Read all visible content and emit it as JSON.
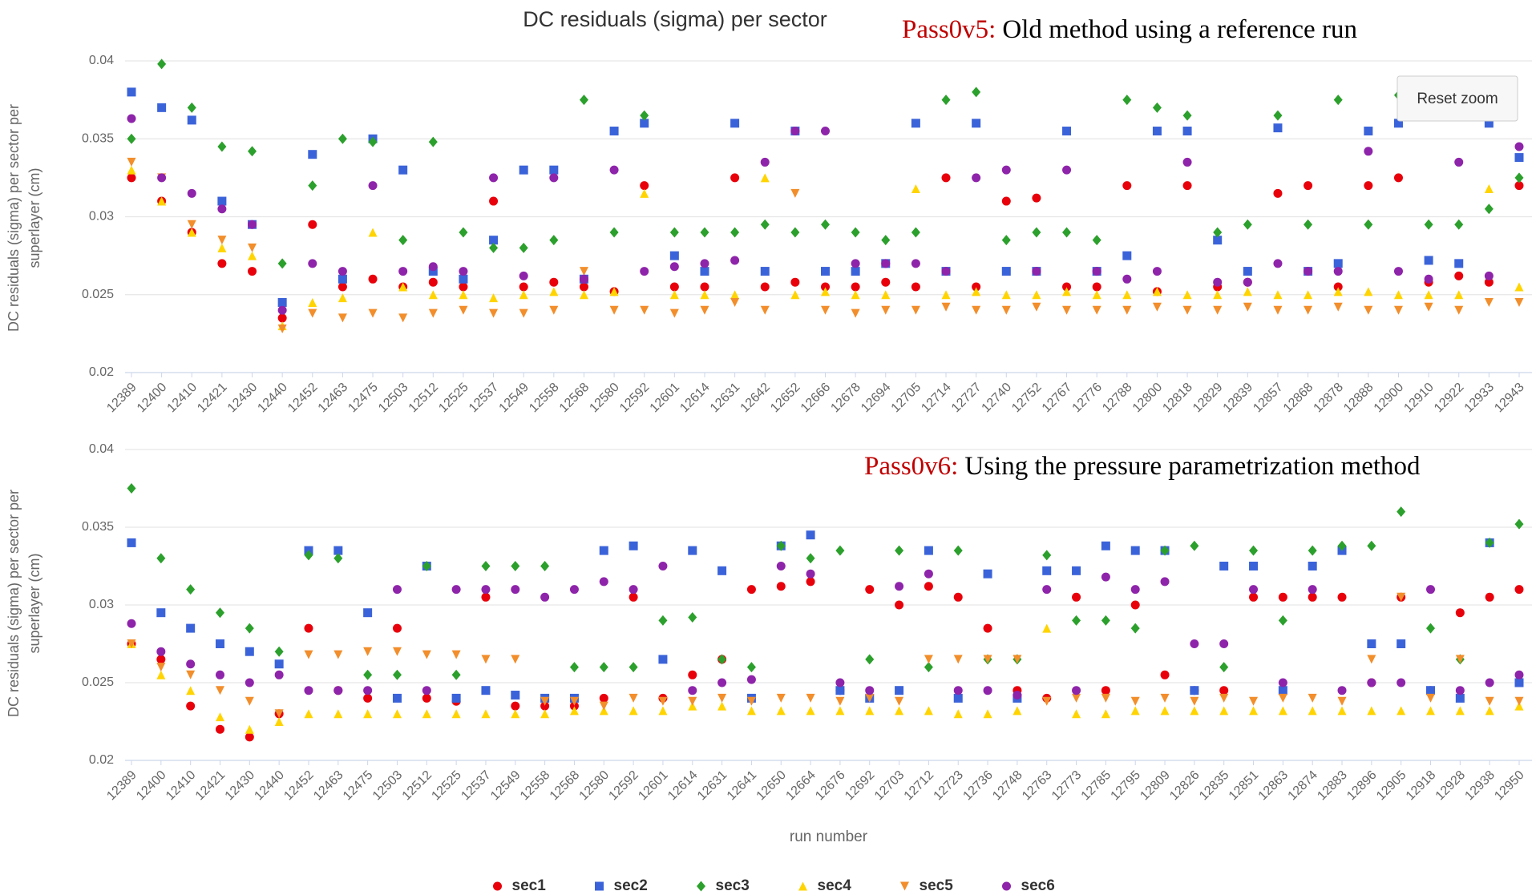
{
  "chart_data": [
    {
      "type": "scatter",
      "title": "DC residuals (sigma) per sector",
      "annotation": {
        "label": "Pass0v5:",
        "text": "Old method using a reference run"
      },
      "button": "Reset zoom",
      "y_label": "DC residuals (sigma) per sector per superlayer (cm)",
      "categories": [
        "12389",
        "12400",
        "12410",
        "12421",
        "12430",
        "12440",
        "12452",
        "12463",
        "12475",
        "12503",
        "12512",
        "12525",
        "12537",
        "12549",
        "12558",
        "12568",
        "12580",
        "12592",
        "12601",
        "12614",
        "12631",
        "12642",
        "12652",
        "12666",
        "12678",
        "12694",
        "12705",
        "12714",
        "12727",
        "12740",
        "12752",
        "12767",
        "12776",
        "12788",
        "12800",
        "12818",
        "12829",
        "12839",
        "12857",
        "12868",
        "12878",
        "12888",
        "12900",
        "12910",
        "12922",
        "12933",
        "12943"
      ],
      "ylim": [
        0.02,
        0.04
      ],
      "yticks": [
        0.02,
        0.025,
        0.03,
        0.035,
        0.04
      ],
      "grid": true,
      "series": [
        {
          "color": "#e8000b",
          "marker": "circle",
          "values": [
            0.0325,
            0.031,
            0.029,
            0.027,
            0.0265,
            0.0235,
            0.0295,
            0.0255,
            0.026,
            0.0255,
            0.0258,
            0.0255,
            0.031,
            0.0255,
            0.0258,
            0.0255,
            0.0252,
            0.032,
            0.0255,
            0.0255,
            0.0325,
            0.0255,
            0.0258,
            0.0255,
            0.0255,
            0.0258,
            0.0255,
            0.0325,
            0.0255,
            0.031,
            0.0312,
            0.0255,
            0.0255,
            0.032,
            0.0252,
            0.032,
            0.0255,
            0.0258,
            0.0315,
            0.032,
            0.0255,
            0.032,
            0.0325,
            0.0258,
            0.0262,
            0.0258,
            0.032
          ]
        },
        {
          "color": "#3b63d9",
          "marker": "square",
          "values": [
            0.038,
            0.037,
            0.0362,
            0.031,
            0.0295,
            0.0245,
            0.034,
            0.026,
            0.035,
            0.033,
            0.0265,
            0.026,
            0.0285,
            0.033,
            0.033,
            0.026,
            0.0355,
            0.036,
            0.0275,
            0.0265,
            0.036,
            0.0265,
            0.0355,
            0.0265,
            0.0265,
            0.027,
            0.036,
            0.0265,
            0.036,
            0.0265,
            0.0265,
            0.0355,
            0.0265,
            0.0275,
            0.0355,
            0.0355,
            0.0285,
            0.0265,
            0.0357,
            0.0265,
            0.027,
            0.0355,
            0.036,
            0.0272,
            0.027,
            0.036,
            0.0338
          ]
        },
        {
          "color": "#2ca02c",
          "marker": "diamond",
          "values": [
            0.035,
            0.0398,
            0.037,
            0.0345,
            0.0342,
            0.027,
            0.032,
            0.035,
            0.0348,
            0.0285,
            0.0348,
            0.029,
            0.028,
            0.028,
            0.0285,
            0.0375,
            0.029,
            0.0365,
            0.029,
            0.029,
            0.029,
            0.0295,
            0.029,
            0.0295,
            0.029,
            0.0285,
            0.029,
            0.0375,
            0.038,
            0.0285,
            0.029,
            0.029,
            0.0285,
            0.0375,
            0.037,
            0.0365,
            0.029,
            0.0295,
            0.0365,
            0.0295,
            0.0375,
            0.0295,
            0.0378,
            0.0295,
            0.0295,
            0.0305,
            0.0325
          ]
        },
        {
          "color": "#ffd400",
          "marker": "triangle",
          "values": [
            0.033,
            0.031,
            0.029,
            0.028,
            0.0275,
            0.023,
            0.0245,
            0.0248,
            0.029,
            0.0255,
            0.025,
            0.025,
            0.0248,
            0.025,
            0.0252,
            0.025,
            0.0252,
            0.0315,
            0.025,
            0.025,
            0.025,
            0.0325,
            0.025,
            0.0252,
            0.025,
            0.025,
            0.0318,
            0.025,
            0.0252,
            0.025,
            0.025,
            0.0252,
            0.025,
            0.025,
            0.0252,
            0.025,
            0.025,
            0.0252,
            0.025,
            0.025,
            0.0252,
            0.0252,
            0.025,
            0.025,
            0.025,
            0.0318,
            0.0255
          ]
        },
        {
          "color": "#f28e2b",
          "marker": "triangle-down",
          "values": [
            0.0335,
            0.0325,
            0.0295,
            0.0285,
            0.028,
            0.0228,
            0.0238,
            0.0235,
            0.0238,
            0.0235,
            0.0238,
            0.024,
            0.0238,
            0.0238,
            0.024,
            0.0265,
            0.024,
            0.024,
            0.0238,
            0.024,
            0.0245,
            0.024,
            0.0315,
            0.024,
            0.0238,
            0.024,
            0.024,
            0.0242,
            0.024,
            0.024,
            0.0242,
            0.024,
            0.024,
            0.024,
            0.0242,
            0.024,
            0.024,
            0.0242,
            0.024,
            0.024,
            0.0242,
            0.024,
            0.024,
            0.0242,
            0.024,
            0.0245,
            0.0245
          ]
        },
        {
          "color": "#8e24aa",
          "marker": "circle",
          "values": [
            0.0363,
            0.0325,
            0.0315,
            0.0305,
            0.0295,
            0.024,
            0.027,
            0.0265,
            0.032,
            0.0265,
            0.0268,
            0.0265,
            0.0325,
            0.0262,
            0.0325,
            0.026,
            0.033,
            0.0265,
            0.0268,
            0.027,
            0.0272,
            0.0335,
            0.0355,
            0.0355,
            0.027,
            0.027,
            0.027,
            0.0265,
            0.0325,
            0.033,
            0.0265,
            0.033,
            0.0265,
            0.026,
            0.0265,
            0.0335,
            0.0258,
            0.0258,
            0.027,
            0.0265,
            0.0265,
            0.0342,
            0.0265,
            0.026,
            0.0335,
            0.0262,
            0.0345
          ]
        }
      ]
    },
    {
      "type": "scatter",
      "annotation": {
        "label": "Pass0v6:",
        "text": "Using the pressure parametrization method"
      },
      "y_label": "DC residuals (sigma) per sector per superlayer (cm)",
      "x_label": "run number",
      "categories": [
        "12389",
        "12400",
        "12410",
        "12421",
        "12430",
        "12440",
        "12452",
        "12463",
        "12475",
        "12503",
        "12512",
        "12525",
        "12537",
        "12549",
        "12558",
        "12568",
        "12580",
        "12592",
        "12601",
        "12614",
        "12631",
        "12641",
        "12650",
        "12664",
        "12676",
        "12692",
        "12703",
        "12712",
        "12723",
        "12736",
        "12748",
        "12763",
        "12773",
        "12785",
        "12795",
        "12809",
        "12826",
        "12835",
        "12851",
        "12863",
        "12874",
        "12883",
        "12896",
        "12905",
        "12918",
        "12928",
        "12938",
        "12950"
      ],
      "ylim": [
        0.02,
        0.04
      ],
      "yticks": [
        0.02,
        0.025,
        0.03,
        0.035,
        0.04
      ],
      "grid": true,
      "series": [
        {
          "name": "sec1",
          "color": "#e8000b",
          "marker": "circle",
          "values": [
            0.0275,
            0.0265,
            0.0235,
            0.022,
            0.0215,
            0.023,
            0.0285,
            0.0245,
            0.024,
            0.0285,
            0.024,
            0.0238,
            0.0305,
            0.0235,
            0.0235,
            0.0235,
            0.024,
            0.0305,
            0.024,
            0.0255,
            0.0265,
            0.031,
            0.0312,
            0.0315,
            0.0245,
            0.031,
            0.03,
            0.0312,
            0.0305,
            0.0285,
            0.0245,
            0.024,
            0.0305,
            0.0245,
            0.03,
            0.0255,
            0.0245,
            0.0245,
            0.0305,
            0.0305,
            0.0305,
            0.0305,
            0.025,
            0.0305,
            0.0245,
            0.0295,
            0.0305,
            0.031
          ]
        },
        {
          "name": "sec2",
          "color": "#3b63d9",
          "marker": "square",
          "values": [
            0.034,
            0.0295,
            0.0285,
            0.0275,
            0.027,
            0.0262,
            0.0335,
            0.0335,
            0.0295,
            0.024,
            0.0325,
            0.024,
            0.0245,
            0.0242,
            0.024,
            0.024,
            0.0335,
            0.0338,
            0.0265,
            0.0335,
            0.0322,
            0.024,
            0.0338,
            0.0345,
            0.0245,
            0.024,
            0.0245,
            0.0335,
            0.024,
            0.032,
            0.024,
            0.0322,
            0.0322,
            0.0338,
            0.0335,
            0.0335,
            0.0245,
            0.0325,
            0.0325,
            0.0245,
            0.0325,
            0.0335,
            0.0275,
            0.0275,
            0.0245,
            0.024,
            0.034,
            0.025
          ]
        },
        {
          "name": "sec3",
          "color": "#2ca02c",
          "marker": "diamond",
          "values": [
            0.0375,
            0.033,
            0.031,
            0.0295,
            0.0285,
            0.027,
            0.0332,
            0.033,
            0.0255,
            0.0255,
            0.0325,
            0.0255,
            0.0325,
            0.0325,
            0.0325,
            0.026,
            0.026,
            0.026,
            0.029,
            0.0292,
            0.0265,
            0.026,
            0.0338,
            0.033,
            0.0335,
            0.0265,
            0.0335,
            0.026,
            0.0335,
            0.0265,
            0.0265,
            0.0332,
            0.029,
            0.029,
            0.0285,
            0.0335,
            0.0338,
            0.026,
            0.0335,
            0.029,
            0.0335,
            0.0338,
            0.0338,
            0.036,
            0.0285,
            0.0265,
            0.034,
            0.0352
          ]
        },
        {
          "name": "sec4",
          "color": "#ffd400",
          "marker": "triangle",
          "values": [
            0.0275,
            0.0255,
            0.0245,
            0.0228,
            0.022,
            0.0225,
            0.023,
            0.023,
            0.023,
            0.023,
            0.023,
            0.023,
            0.023,
            0.023,
            0.023,
            0.0232,
            0.0232,
            0.0232,
            0.0232,
            0.0235,
            0.0235,
            0.0232,
            0.0232,
            0.0232,
            0.0232,
            0.0232,
            0.0232,
            0.0232,
            0.023,
            0.023,
            0.0232,
            0.0285,
            0.023,
            0.023,
            0.0232,
            0.0232,
            0.0232,
            0.0232,
            0.0232,
            0.0232,
            0.0232,
            0.0232,
            0.0232,
            0.0232,
            0.0232,
            0.0232,
            0.0232,
            0.0235
          ]
        },
        {
          "name": "sec5",
          "color": "#f28e2b",
          "marker": "triangle-down",
          "values": [
            0.0275,
            0.026,
            0.0255,
            0.0245,
            0.0238,
            0.023,
            0.0268,
            0.0268,
            0.027,
            0.027,
            0.0268,
            0.0268,
            0.0265,
            0.0265,
            0.0238,
            0.0238,
            0.0235,
            0.024,
            0.0238,
            0.0238,
            0.024,
            0.0238,
            0.024,
            0.024,
            0.0238,
            0.024,
            0.0238,
            0.0265,
            0.0265,
            0.0265,
            0.0265,
            0.0238,
            0.024,
            0.024,
            0.0238,
            0.024,
            0.0238,
            0.024,
            0.0238,
            0.024,
            0.024,
            0.0238,
            0.0265,
            0.0305,
            0.024,
            0.0265,
            0.0238,
            0.0238
          ]
        },
        {
          "name": "sec6",
          "color": "#8e24aa",
          "marker": "circle",
          "values": [
            0.0288,
            0.027,
            0.0262,
            0.0255,
            0.025,
            0.0255,
            0.0245,
            0.0245,
            0.0245,
            0.031,
            0.0245,
            0.031,
            0.031,
            0.031,
            0.0305,
            0.031,
            0.0315,
            0.031,
            0.0325,
            0.0245,
            0.025,
            0.0252,
            0.0325,
            0.032,
            0.025,
            0.0245,
            0.0312,
            0.032,
            0.0245,
            0.0245,
            0.0242,
            0.031,
            0.0245,
            0.0318,
            0.031,
            0.0315,
            0.0275,
            0.0275,
            0.031,
            0.025,
            0.031,
            0.0245,
            0.025,
            0.025,
            0.031,
            0.0245,
            0.025,
            0.0255
          ]
        }
      ]
    }
  ]
}
